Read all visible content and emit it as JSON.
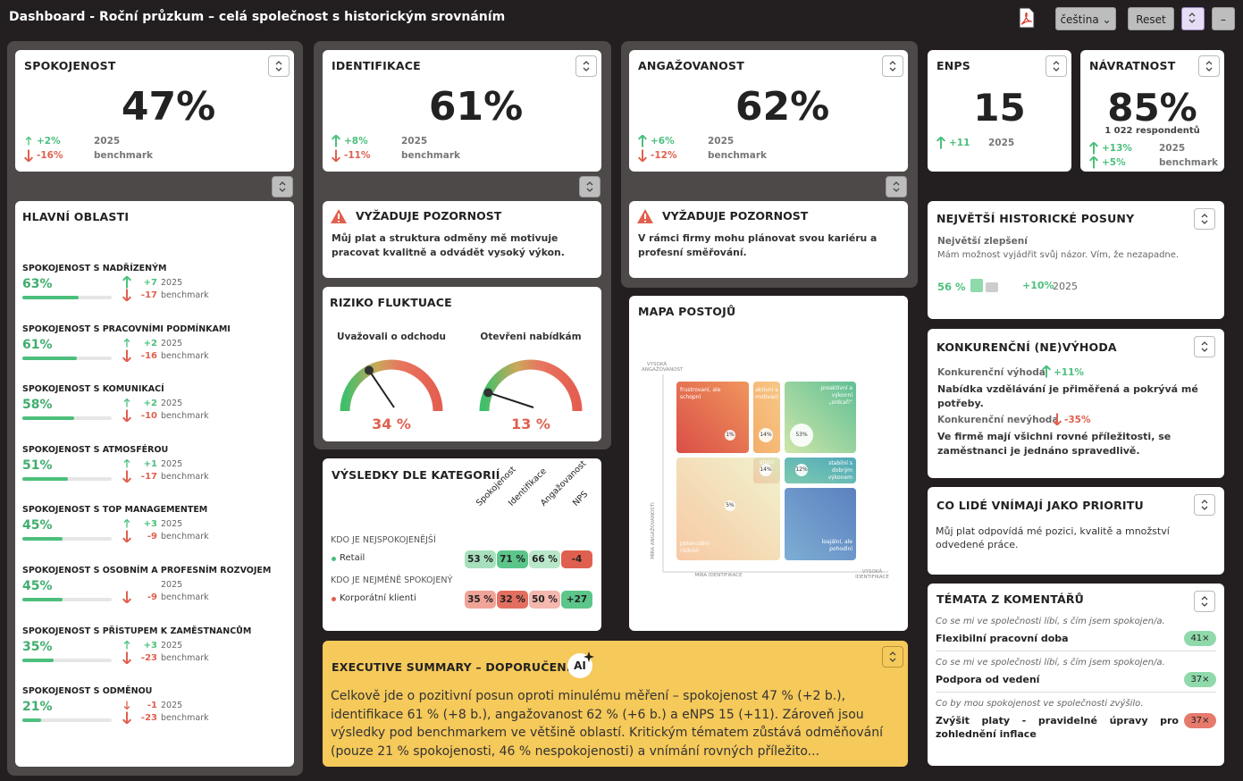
{
  "header": {
    "title": "Dashboard - Roční průzkum – celá společnost s historickým srovnáním",
    "language": "čeština",
    "reset": "Reset"
  },
  "kpis": [
    {
      "title": "SPOKOJENOST",
      "value": "47%",
      "changes": [
        {
          "delta": "+2%",
          "ref": "2025"
        },
        {
          "delta": "-16%",
          "ref": "benchmark"
        }
      ]
    },
    {
      "title": "IDENTIFIKACE",
      "value": "61%",
      "changes": [
        {
          "delta": "+8%",
          "ref": "2025"
        },
        {
          "delta": "-11%",
          "ref": "benchmark"
        }
      ]
    },
    {
      "title": "ANGAŽOVANOST",
      "value": "62%",
      "changes": [
        {
          "delta": "+6%",
          "ref": "2025"
        },
        {
          "delta": "-12%",
          "ref": "benchmark"
        }
      ]
    },
    {
      "title": "ENPS",
      "value": "15",
      "changes": [
        {
          "delta": "+11",
          "ref": "2025"
        }
      ]
    },
    {
      "title": "NÁVRATNOST",
      "value": "85%",
      "note": "1 022 respondentů",
      "changes": [
        {
          "delta": "+13%",
          "ref": "2025"
        },
        {
          "delta": "+5%",
          "ref": "benchmark"
        }
      ]
    }
  ],
  "areas": {
    "title": "HLAVNÍ OBLASTI",
    "items": [
      {
        "name": "SPOKOJENOST S NADŘÍZENÝM",
        "value": 63,
        "label": "63%",
        "changes": [
          {
            "delta": "+7",
            "ref": "2025"
          },
          {
            "delta": "-17",
            "ref": "benchmark"
          }
        ]
      },
      {
        "name": "SPOKOJENOST S PRACOVNÍMI PODMÍNKAMI",
        "value": 61,
        "label": "61%",
        "changes": [
          {
            "delta": "+2",
            "ref": "2025"
          },
          {
            "delta": "-16",
            "ref": "benchmark"
          }
        ]
      },
      {
        "name": "SPOKOJENOST S KOMUNIKACÍ",
        "value": 58,
        "label": "58%",
        "changes": [
          {
            "delta": "+2",
            "ref": "2025"
          },
          {
            "delta": "-10",
            "ref": "benchmark"
          }
        ]
      },
      {
        "name": "SPOKOJENOST S ATMOSFÉROU",
        "value": 51,
        "label": "51%",
        "changes": [
          {
            "delta": "+1",
            "ref": "2025"
          },
          {
            "delta": "-17",
            "ref": "benchmark"
          }
        ]
      },
      {
        "name": "SPOKOJENOST S TOP MANAGEMENTEM",
        "value": 45,
        "label": "45%",
        "changes": [
          {
            "delta": "+3",
            "ref": "2025"
          },
          {
            "delta": "-9",
            "ref": "benchmark"
          }
        ]
      },
      {
        "name": "SPOKOJENOST S OSOBNÍM A PROFESNÍM ROZVOJEM",
        "value": 45,
        "label": "45%",
        "changes": [
          {
            "ref": "2025"
          },
          {
            "delta": "-9",
            "ref": "benchmark"
          }
        ]
      },
      {
        "name": "SPOKOJENOST S PŘÍSTUPEM K ZAMĚSTNANCŮM",
        "value": 35,
        "label": "35%",
        "changes": [
          {
            "delta": "+3",
            "ref": "2025"
          },
          {
            "delta": "-23",
            "ref": "benchmark"
          }
        ]
      },
      {
        "name": "SPOKOJENOST S ODMĚNOU",
        "value": 21,
        "label": "21%",
        "changes": [
          {
            "delta": "-1",
            "ref": "2025"
          },
          {
            "delta": "-23",
            "ref": "benchmark"
          }
        ]
      }
    ]
  },
  "alerts": [
    {
      "heading": "VYŽADUJE POZORNOST",
      "text": "Můj plat a struktura odměny mě motivuje pracovat kvalitně a odvádět vysoký výkon."
    },
    {
      "heading": "VYŽADUJE POZORNOST",
      "text": "V rámci firmy mohu plánovat svou kariéru a profesní směřování."
    }
  ],
  "turnover": {
    "title": "RIZIKO FLUKTUACE",
    "gauges": [
      {
        "label": "Uvažovali o odchodu",
        "value": 34,
        "value_label": "34 %"
      },
      {
        "label": "Otevřeni nabídkám",
        "value": 13,
        "value_label": "13 %"
      }
    ]
  },
  "categories": {
    "title": "VÝSLEDKY DLE KATEGORIÍ",
    "columns": [
      "Spokojenost",
      "Identifikace",
      "Angažovanost",
      "NPS"
    ],
    "groups": [
      {
        "heading": "KDO JE NEJSPOKOJENĚJŠÍ",
        "name": "Retail",
        "dot": "#4cbf7c",
        "cells": [
          {
            "label": "53 %",
            "color": "#a8e0bd"
          },
          {
            "label": "71 %",
            "color": "#5cc68a"
          },
          {
            "label": "66 %",
            "color": "#b9e7ca"
          },
          {
            "label": "-4",
            "color": "#e0604f"
          }
        ]
      },
      {
        "heading": "KDO JE NEJMÉNĚ SPOKOJENÝ",
        "name": "Korporátní klienti",
        "dot": "#e0604f",
        "cells": [
          {
            "label": "35 %",
            "color": "#f0a398"
          },
          {
            "label": "32 %",
            "color": "#e36f60"
          },
          {
            "label": "50 %",
            "color": "#f4b8ae"
          },
          {
            "label": "+27",
            "color": "#5cc68a"
          }
        ]
      }
    ]
  },
  "map": {
    "title": "MAPA POSTOJŮ",
    "high_y": "VYSOKÁ ANGAŽOVANOST",
    "high_x": "VYSOKÁ IDENTIFIKACE",
    "y_axis": "MÍRA ANGAŽOVANOSTI",
    "x_axis": "MÍRA IDENTIFIKACE",
    "segments": [
      {
        "label": "frustrovaní, ale schopní",
        "share": "1%"
      },
      {
        "label": "aktivní a motivací",
        "share": "14%"
      },
      {
        "label": "proaktivní a výkonní „srdcaři“",
        "share": "53%"
      },
      {
        "label": "plníci",
        "share": "14%"
      },
      {
        "label": "stabilní s dobrým výkonem",
        "share": "12%"
      },
      {
        "label": "potenciální rizikoví",
        "share": "5%"
      },
      {
        "label": "loajální, ale pohodlní"
      }
    ]
  },
  "summary": {
    "title": "EXECUTIVE SUMMARY – DOPORUČENÍ",
    "badge": "AI",
    "text": "Celkově jde o pozitivní posun oproti minulému měření – spokojenost 47 % (+2 b.), identifikace 61 % (+8 b.), angažovanost 62 % (+6 b.) a eNPS 15 (+11). Zároveň jsou výsledky pod benchmarkem ve většině oblastí. Kritickým tématem zůstává odměňování (pouze 21 % spokojenosti, 46 % nespokojenosti) a vnímání rovných příležito..."
  },
  "history": {
    "title": "NEJVĚTŠÍ HISTORICKÉ POSUNY",
    "subtitle": "Největší zlepšení",
    "statement": "Mám možnost vyjádřit svůj názor. Vím, že nezapadne.",
    "value": "56 %",
    "delta": "+10%",
    "ref": "2025"
  },
  "competitive": {
    "title": "KONKURENČNÍ (NE)VÝHODA",
    "items": [
      {
        "heading": "Konkurenční výhoda",
        "delta": "+11%",
        "text": "Nabídka vzdělávání je přiměřená a pokrývá mé potřeby."
      },
      {
        "heading": "Konkurenční nevýhoda",
        "delta": "-35%",
        "text": "Ve firmě mají všichni rovné příležitosti, se zaměstnanci je jednáno spravedlivě."
      }
    ]
  },
  "priority": {
    "title": "CO LIDÉ VNÍMAJÍ JAKO PRIORITU",
    "text": "Můj plat odpovídá mé pozici, kvalitě a množství odvedené práce."
  },
  "comments": {
    "title": "TÉMATA Z KOMENTÁŘŮ",
    "items": [
      {
        "question": "Co se mi ve společnosti líbí, s čím jsem spokojen/a.",
        "topic": "Flexibilní pracovní doba",
        "count": "41×",
        "color": "#8fd9ab"
      },
      {
        "question": "Co se mi ve společnosti líbí, s čím jsem spokojen/a.",
        "topic": "Podpora od vedení",
        "count": "37×",
        "color": "#8fd9ab"
      },
      {
        "question": "Co by mou spokojenost ve společnosti zvýšilo.",
        "topic": "Zvýšit platy - pravidelné úpravy pro zohlednění inflace",
        "count": "37×",
        "color": "#e67a6c"
      }
    ]
  }
}
